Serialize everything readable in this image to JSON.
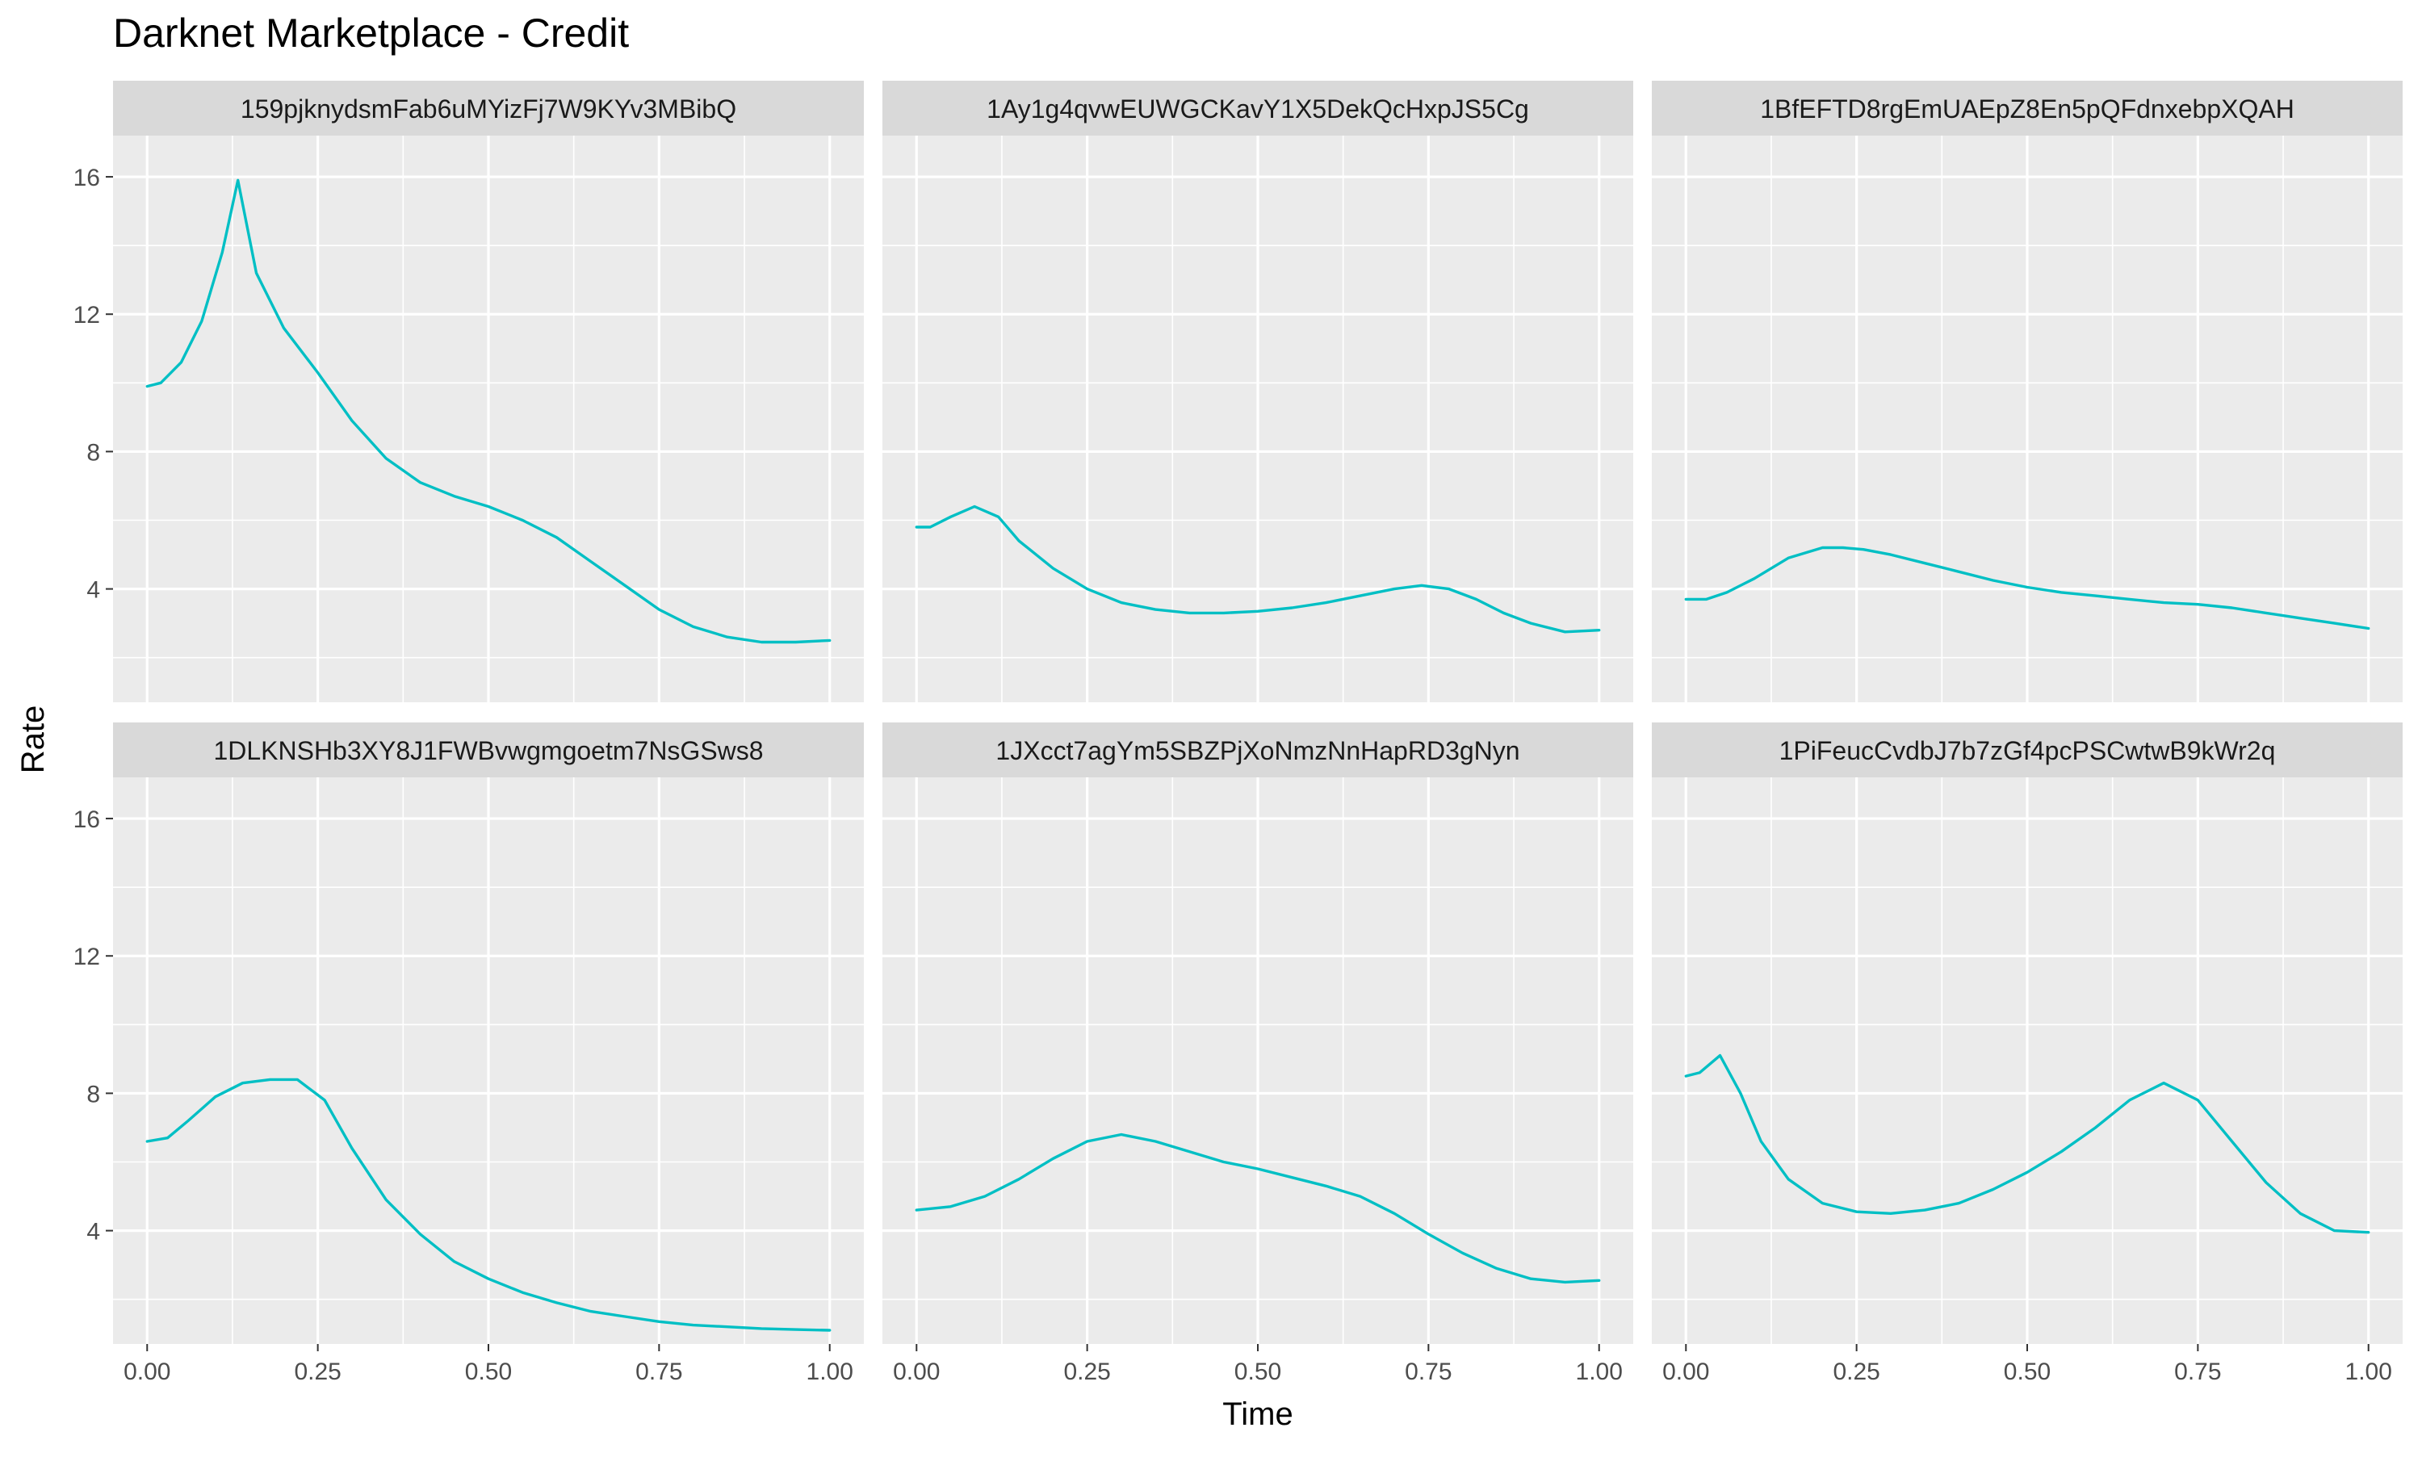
{
  "chart_data": {
    "type": "line",
    "title": "Darknet Marketplace - Credit",
    "xlabel": "Time",
    "ylabel": "Rate",
    "xlim": [
      -0.05,
      1.05
    ],
    "ylim": [
      0.7,
      17.2
    ],
    "x_ticks": [
      0.0,
      0.25,
      0.5,
      0.75,
      1.0
    ],
    "x_tick_labels": [
      "0.00",
      "0.25",
      "0.50",
      "0.75",
      "1.00"
    ],
    "y_ticks": [
      4,
      8,
      12,
      16
    ],
    "y_tick_labels": [
      "4",
      "8",
      "12",
      "16"
    ],
    "grid": true,
    "line_color": "#00BFC4",
    "panel_background": "#EBEBEB",
    "strip_background": "#D9D9D9",
    "facets": [
      {
        "name": "159pjknydsmFab6uMYizFj7W9KYv3MBibQ",
        "x": [
          0.0,
          0.02,
          0.05,
          0.08,
          0.11,
          0.133,
          0.16,
          0.2,
          0.25,
          0.3,
          0.35,
          0.4,
          0.45,
          0.5,
          0.55,
          0.6,
          0.65,
          0.7,
          0.75,
          0.8,
          0.85,
          0.9,
          0.95,
          1.0
        ],
        "y": [
          9.9,
          10.0,
          10.6,
          11.8,
          13.8,
          15.9,
          13.2,
          11.6,
          10.3,
          8.9,
          7.8,
          7.1,
          6.7,
          6.4,
          6.0,
          5.5,
          4.8,
          4.1,
          3.4,
          2.9,
          2.6,
          2.45,
          2.45,
          2.5
        ]
      },
      {
        "name": "1Ay1g4qvwEUWGCKavY1X5DekQcHxpJS5Cg",
        "x": [
          0.0,
          0.02,
          0.05,
          0.085,
          0.12,
          0.15,
          0.2,
          0.25,
          0.3,
          0.35,
          0.4,
          0.45,
          0.5,
          0.55,
          0.6,
          0.65,
          0.7,
          0.74,
          0.78,
          0.82,
          0.86,
          0.9,
          0.95,
          1.0
        ],
        "y": [
          5.8,
          5.8,
          6.1,
          6.4,
          6.1,
          5.4,
          4.6,
          4.0,
          3.6,
          3.4,
          3.3,
          3.3,
          3.35,
          3.45,
          3.6,
          3.8,
          4.0,
          4.1,
          4.0,
          3.7,
          3.3,
          3.0,
          2.75,
          2.8
        ]
      },
      {
        "name": "1BfEFTD8rgEmUAEpZ8En5pQFdnxebpXQAH",
        "x": [
          0.0,
          0.03,
          0.06,
          0.1,
          0.15,
          0.2,
          0.23,
          0.26,
          0.3,
          0.35,
          0.4,
          0.45,
          0.5,
          0.55,
          0.6,
          0.65,
          0.7,
          0.75,
          0.8,
          0.85,
          0.9,
          0.95,
          1.0
        ],
        "y": [
          3.7,
          3.7,
          3.9,
          4.3,
          4.9,
          5.2,
          5.2,
          5.15,
          5.0,
          4.75,
          4.5,
          4.25,
          4.05,
          3.9,
          3.8,
          3.7,
          3.6,
          3.55,
          3.45,
          3.3,
          3.15,
          3.0,
          2.85
        ]
      },
      {
        "name": "1DLKNSHb3XY8J1FWBvwgmgoetm7NsGSws8",
        "x": [
          0.0,
          0.03,
          0.06,
          0.1,
          0.14,
          0.18,
          0.22,
          0.26,
          0.3,
          0.35,
          0.4,
          0.45,
          0.5,
          0.55,
          0.6,
          0.65,
          0.7,
          0.75,
          0.8,
          0.85,
          0.9,
          0.95,
          1.0
        ],
        "y": [
          6.6,
          6.7,
          7.2,
          7.9,
          8.3,
          8.4,
          8.4,
          7.8,
          6.4,
          4.9,
          3.9,
          3.1,
          2.6,
          2.2,
          1.9,
          1.65,
          1.5,
          1.35,
          1.25,
          1.2,
          1.15,
          1.12,
          1.1
        ]
      },
      {
        "name": "1JXcct7agYm5SBZPjXoNmzNnHapRD3gNyn",
        "x": [
          0.0,
          0.05,
          0.1,
          0.15,
          0.2,
          0.25,
          0.3,
          0.35,
          0.4,
          0.45,
          0.5,
          0.55,
          0.6,
          0.65,
          0.7,
          0.75,
          0.8,
          0.85,
          0.9,
          0.95,
          1.0
        ],
        "y": [
          4.6,
          4.7,
          5.0,
          5.5,
          6.1,
          6.6,
          6.8,
          6.6,
          6.3,
          6.0,
          5.8,
          5.55,
          5.3,
          5.0,
          4.5,
          3.9,
          3.35,
          2.9,
          2.6,
          2.5,
          2.55
        ]
      },
      {
        "name": "1PiFeucCvdbJ7b7zGf4pcPSCwtwB9kWr2q",
        "x": [
          0.0,
          0.02,
          0.05,
          0.08,
          0.11,
          0.15,
          0.2,
          0.25,
          0.3,
          0.35,
          0.4,
          0.45,
          0.5,
          0.55,
          0.6,
          0.65,
          0.7,
          0.75,
          0.8,
          0.85,
          0.9,
          0.95,
          1.0
        ],
        "y": [
          8.5,
          8.6,
          9.1,
          8.0,
          6.6,
          5.5,
          4.8,
          4.55,
          4.5,
          4.6,
          4.8,
          5.2,
          5.7,
          6.3,
          7.0,
          7.8,
          8.3,
          7.8,
          6.6,
          5.4,
          4.5,
          4.0,
          3.95
        ]
      }
    ]
  }
}
